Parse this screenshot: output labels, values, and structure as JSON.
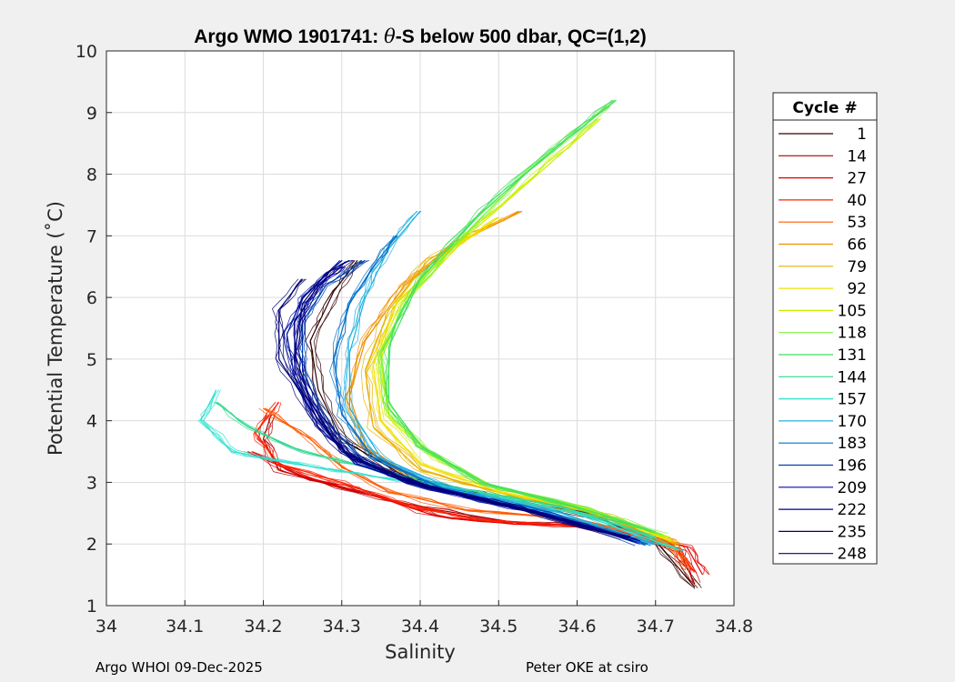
{
  "chart_data": {
    "type": "line",
    "title_prefix": "Argo WMO 1901741: ",
    "title_theta": "θ",
    "title_suffix": "-S below 500 dbar,  QC=(1,2)",
    "xlabel": "Salinity",
    "ylabel": "Potential Temperature (˚C)",
    "xlim": [
      34.0,
      34.8
    ],
    "ylim": [
      1,
      10
    ],
    "xticks": [
      "34",
      "34.1",
      "34.2",
      "34.3",
      "34.4",
      "34.5",
      "34.6",
      "34.7",
      "34.8"
    ],
    "yticks": [
      "1",
      "2",
      "3",
      "4",
      "5",
      "6",
      "7",
      "8",
      "9",
      "10"
    ],
    "grid": true,
    "legend_title": "Cycle #",
    "legend_position": "right",
    "series": [
      {
        "name": "1",
        "color": "#330000",
        "points": [
          [
            34.75,
            1.3
          ],
          [
            34.7,
            2.05
          ],
          [
            34.62,
            2.45
          ],
          [
            34.5,
            2.75
          ],
          [
            34.38,
            3.1
          ],
          [
            34.3,
            3.7
          ],
          [
            34.27,
            4.5
          ],
          [
            34.26,
            5.3
          ],
          [
            34.29,
            6.1
          ],
          [
            34.32,
            6.6
          ]
        ]
      },
      {
        "name": "14",
        "color": "#b30000",
        "points": [
          [
            34.75,
            1.35
          ],
          [
            34.73,
            1.9
          ],
          [
            34.62,
            2.3
          ],
          [
            34.52,
            2.35
          ],
          [
            34.4,
            2.6
          ],
          [
            34.3,
            2.9
          ],
          [
            34.22,
            3.2
          ],
          [
            34.2,
            3.7
          ],
          [
            34.21,
            4.1
          ]
        ]
      },
      {
        "name": "27",
        "color": "#e00000",
        "points": [
          [
            34.76,
            1.5
          ],
          [
            34.74,
            1.95
          ],
          [
            34.64,
            2.28
          ],
          [
            34.52,
            2.32
          ],
          [
            34.42,
            2.45
          ],
          [
            34.35,
            2.75
          ],
          [
            34.25,
            3.1
          ],
          [
            34.18,
            3.5
          ]
        ]
      },
      {
        "name": "40",
        "color": "#ff2000",
        "points": [
          [
            34.75,
            1.55
          ],
          [
            34.72,
            2.0
          ],
          [
            34.6,
            2.3
          ],
          [
            34.47,
            2.4
          ],
          [
            34.38,
            2.65
          ],
          [
            34.3,
            3.0
          ],
          [
            34.22,
            3.3
          ],
          [
            34.19,
            3.8
          ],
          [
            34.22,
            4.3
          ]
        ]
      },
      {
        "name": "53",
        "color": "#ff5a00",
        "points": [
          [
            34.74,
            1.6
          ],
          [
            34.72,
            2.05
          ],
          [
            34.6,
            2.4
          ],
          [
            34.46,
            2.55
          ],
          [
            34.36,
            2.85
          ],
          [
            34.3,
            3.25
          ],
          [
            34.26,
            3.7
          ],
          [
            34.2,
            4.2
          ]
        ]
      },
      {
        "name": "66",
        "color": "#f09000",
        "points": [
          [
            34.73,
            1.9
          ],
          [
            34.65,
            2.4
          ],
          [
            34.52,
            2.7
          ],
          [
            34.4,
            3.0
          ],
          [
            34.33,
            3.6
          ],
          [
            34.31,
            4.4
          ],
          [
            34.33,
            5.3
          ],
          [
            34.38,
            6.2
          ],
          [
            34.45,
            6.9
          ],
          [
            34.53,
            7.4
          ]
        ]
      },
      {
        "name": "79",
        "color": "#e8b000",
        "points": [
          [
            34.73,
            2.0
          ],
          [
            34.64,
            2.45
          ],
          [
            34.51,
            2.8
          ],
          [
            34.4,
            3.2
          ],
          [
            34.34,
            3.9
          ],
          [
            34.33,
            4.8
          ],
          [
            34.36,
            5.8
          ],
          [
            34.41,
            6.6
          ],
          [
            34.46,
            7.0
          ]
        ]
      },
      {
        "name": "92",
        "color": "#f0e000",
        "points": [
          [
            34.72,
            2.05
          ],
          [
            34.63,
            2.5
          ],
          [
            34.5,
            2.85
          ],
          [
            34.4,
            3.3
          ],
          [
            34.35,
            4.0
          ],
          [
            34.34,
            4.9
          ],
          [
            34.37,
            5.9
          ],
          [
            34.44,
            6.8
          ],
          [
            34.5,
            7.3
          ]
        ]
      },
      {
        "name": "105",
        "color": "#c8f000",
        "points": [
          [
            34.72,
            2.1
          ],
          [
            34.62,
            2.55
          ],
          [
            34.5,
            2.9
          ],
          [
            34.42,
            3.4
          ],
          [
            34.36,
            4.1
          ],
          [
            34.35,
            5.0
          ],
          [
            34.38,
            5.9
          ],
          [
            34.46,
            7.0
          ],
          [
            34.55,
            8.0
          ],
          [
            34.63,
            8.9
          ]
        ]
      },
      {
        "name": "118",
        "color": "#80f040",
        "points": [
          [
            34.71,
            2.15
          ],
          [
            34.61,
            2.6
          ],
          [
            34.49,
            2.95
          ],
          [
            34.41,
            3.5
          ],
          [
            34.36,
            4.2
          ],
          [
            34.35,
            5.1
          ],
          [
            34.39,
            6.1
          ],
          [
            34.47,
            7.2
          ],
          [
            34.55,
            8.2
          ],
          [
            34.64,
            9.1
          ]
        ]
      },
      {
        "name": "131",
        "color": "#40e060",
        "points": [
          [
            34.7,
            2.2
          ],
          [
            34.6,
            2.6
          ],
          [
            34.48,
            3.0
          ],
          [
            34.4,
            3.6
          ],
          [
            34.36,
            4.3
          ],
          [
            34.36,
            5.2
          ],
          [
            34.4,
            6.3
          ],
          [
            34.48,
            7.4
          ],
          [
            34.57,
            8.4
          ],
          [
            34.65,
            9.2
          ]
        ]
      },
      {
        "name": "144",
        "color": "#30d890",
        "points": [
          [
            34.7,
            2.1
          ],
          [
            34.58,
            2.6
          ],
          [
            34.45,
            2.9
          ],
          [
            34.35,
            3.2
          ],
          [
            34.25,
            3.5
          ],
          [
            34.18,
            3.9
          ],
          [
            34.14,
            4.3
          ]
        ]
      },
      {
        "name": "157",
        "color": "#30e0d0",
        "points": [
          [
            34.73,
            1.9
          ],
          [
            34.6,
            2.5
          ],
          [
            34.46,
            2.85
          ],
          [
            34.34,
            3.1
          ],
          [
            34.24,
            3.3
          ],
          [
            34.16,
            3.5
          ],
          [
            34.12,
            4.0
          ],
          [
            34.14,
            4.5
          ]
        ]
      },
      {
        "name": "170",
        "color": "#20b0e0",
        "points": [
          [
            34.7,
            2.0
          ],
          [
            34.58,
            2.5
          ],
          [
            34.44,
            2.9
          ],
          [
            34.35,
            3.4
          ],
          [
            34.31,
            4.2
          ],
          [
            34.31,
            5.1
          ],
          [
            34.33,
            6.0
          ],
          [
            34.36,
            6.8
          ],
          [
            34.4,
            7.4
          ]
        ]
      },
      {
        "name": "183",
        "color": "#0070c8",
        "points": [
          [
            34.69,
            2.0
          ],
          [
            34.57,
            2.5
          ],
          [
            34.43,
            2.9
          ],
          [
            34.34,
            3.4
          ],
          [
            34.3,
            4.1
          ],
          [
            34.29,
            5.0
          ],
          [
            34.31,
            5.9
          ],
          [
            34.34,
            6.5
          ],
          [
            34.37,
            7.0
          ]
        ]
      },
      {
        "name": "196",
        "color": "#0040b0",
        "points": [
          [
            34.68,
            2.0
          ],
          [
            34.56,
            2.5
          ],
          [
            34.42,
            2.9
          ],
          [
            34.33,
            3.3
          ],
          [
            34.28,
            4.0
          ],
          [
            34.25,
            4.8
          ],
          [
            34.25,
            5.6
          ],
          [
            34.28,
            6.2
          ],
          [
            34.33,
            6.6
          ]
        ]
      },
      {
        "name": "209",
        "color": "#0010a0",
        "points": [
          [
            34.68,
            2.05
          ],
          [
            34.55,
            2.5
          ],
          [
            34.41,
            2.9
          ],
          [
            34.32,
            3.3
          ],
          [
            34.27,
            3.9
          ],
          [
            34.24,
            4.7
          ],
          [
            34.23,
            5.4
          ],
          [
            34.25,
            6.0
          ],
          [
            34.3,
            6.6
          ]
        ]
      },
      {
        "name": "222",
        "color": "#00008c",
        "points": [
          [
            34.67,
            2.05
          ],
          [
            34.54,
            2.55
          ],
          [
            34.4,
            2.95
          ],
          [
            34.31,
            3.4
          ],
          [
            34.27,
            4.0
          ],
          [
            34.24,
            4.8
          ],
          [
            34.24,
            5.6
          ],
          [
            34.27,
            6.2
          ],
          [
            34.3,
            6.5
          ]
        ]
      },
      {
        "name": "235",
        "color": "#000070",
        "points": [
          [
            34.66,
            2.1
          ],
          [
            34.53,
            2.55
          ],
          [
            34.39,
            3.0
          ],
          [
            34.3,
            3.5
          ],
          [
            34.26,
            4.2
          ],
          [
            34.22,
            5.0
          ],
          [
            34.22,
            5.8
          ],
          [
            34.25,
            6.3
          ]
        ]
      },
      {
        "name": "248",
        "color": "#000080",
        "points": [
          [
            34.66,
            2.1
          ],
          [
            34.52,
            2.6
          ],
          [
            34.38,
            3.0
          ],
          [
            34.3,
            3.5
          ],
          [
            34.26,
            4.3
          ],
          [
            34.24,
            5.1
          ],
          [
            34.25,
            5.9
          ],
          [
            34.28,
            6.4
          ],
          [
            34.31,
            6.6
          ]
        ]
      }
    ]
  },
  "footer": {
    "left": "Argo WHOI 09-Dec-2025",
    "right": "Peter OKE at csiro"
  }
}
